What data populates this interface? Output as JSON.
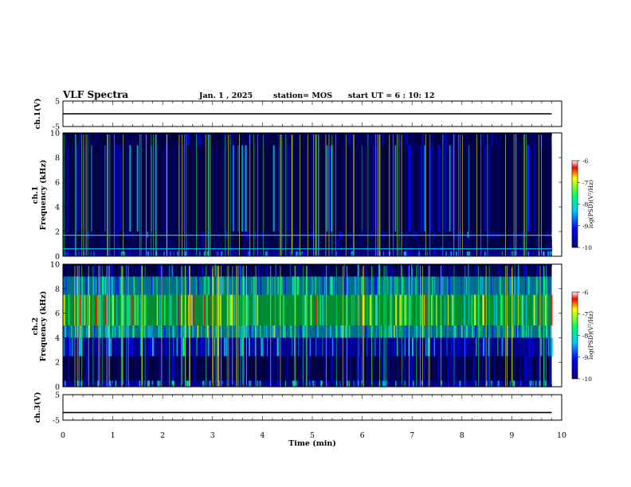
{
  "header": {
    "title": "VLF Spectra",
    "date": "Jan. 1 , 2025",
    "station": "station= MOS",
    "start_ut": "start UT = 6 : 10: 12"
  },
  "colors": {
    "black": "#000000",
    "navy": "#00007a",
    "blue": "#0000ff",
    "cyan": "#00c8ff",
    "green": "#00ff60",
    "yellow": "#ffff00",
    "red": "#ff0000"
  },
  "chart_data": [
    {
      "type": "line",
      "ylabel": "ch.1(V)",
      "xlim": [
        0,
        10
      ],
      "ylim": [
        -5,
        5
      ],
      "yticks": [
        "5",
        "-5"
      ],
      "series": [
        {
          "x": [
            0,
            9.8
          ],
          "y": [
            0,
            0
          ]
        }
      ]
    },
    {
      "type": "heatmap",
      "ylabel": "ch.1 Frequency (kHz)",
      "xlim": [
        0,
        10
      ],
      "ylim": [
        0,
        10
      ],
      "yticks": [
        "10",
        "8",
        "6",
        "4",
        "2",
        "0"
      ],
      "data_xmax": 9.8,
      "colorbar": {
        "label": "log(PSD)(V²/Hz)",
        "range": [
          -10,
          -6
        ],
        "ticks": [
          "-6",
          "-7",
          "-8",
          "-9",
          "-10"
        ]
      },
      "band_levels": [
        {
          "f_low": 0,
          "f_high": 0.4,
          "level": -8.6
        },
        {
          "f_low": 0.4,
          "f_high": 0.8,
          "level": -9.8
        },
        {
          "f_low": 0.8,
          "f_high": 1.5,
          "level": -10
        },
        {
          "f_low": 1.5,
          "f_high": 2,
          "level": -9.4
        },
        {
          "f_low": 2,
          "f_high": 9,
          "level": -9.2
        },
        {
          "f_low": 9,
          "f_high": 10,
          "level": -10
        }
      ],
      "lines_khz": [
        0.6,
        1.7
      ]
    },
    {
      "type": "heatmap",
      "ylabel": "ch.2 Frequency (kHz)",
      "xlim": [
        0,
        10
      ],
      "ylim": [
        0,
        10
      ],
      "yticks": [
        "10",
        "8",
        "6",
        "4",
        "2",
        "0"
      ],
      "data_xmax": 9.8,
      "colorbar": {
        "label": "log(PSD)(V²/Hz)",
        "range": [
          -10,
          -6
        ],
        "ticks": [
          "-6",
          "-7",
          "-8",
          "-9",
          "-10"
        ]
      },
      "band_levels": [
        {
          "f_low": 0,
          "f_high": 0.5,
          "level": -8.4
        },
        {
          "f_low": 0.5,
          "f_high": 2.5,
          "level": -9.4
        },
        {
          "f_low": 2.5,
          "f_high": 4,
          "level": -8.4
        },
        {
          "f_low": 4,
          "f_high": 5,
          "level": -7.8
        },
        {
          "f_low": 5,
          "f_high": 7.5,
          "level": -7.1
        },
        {
          "f_low": 7.5,
          "f_high": 9,
          "level": -8
        },
        {
          "f_low": 9,
          "f_high": 10,
          "level": -9.3
        }
      ],
      "lines_khz": []
    },
    {
      "type": "line",
      "ylabel": "ch.3(V)",
      "xlabel": "Time (min)",
      "xlim": [
        0,
        10
      ],
      "ylim": [
        -5,
        5
      ],
      "yticks": [
        "5",
        "-5"
      ],
      "xticks": [
        "0",
        "1",
        "2",
        "3",
        "4",
        "5",
        "6",
        "7",
        "8",
        "9",
        "10"
      ],
      "series": [
        {
          "x": [
            0,
            9.8
          ],
          "y": [
            -2,
            -2
          ]
        }
      ]
    }
  ]
}
